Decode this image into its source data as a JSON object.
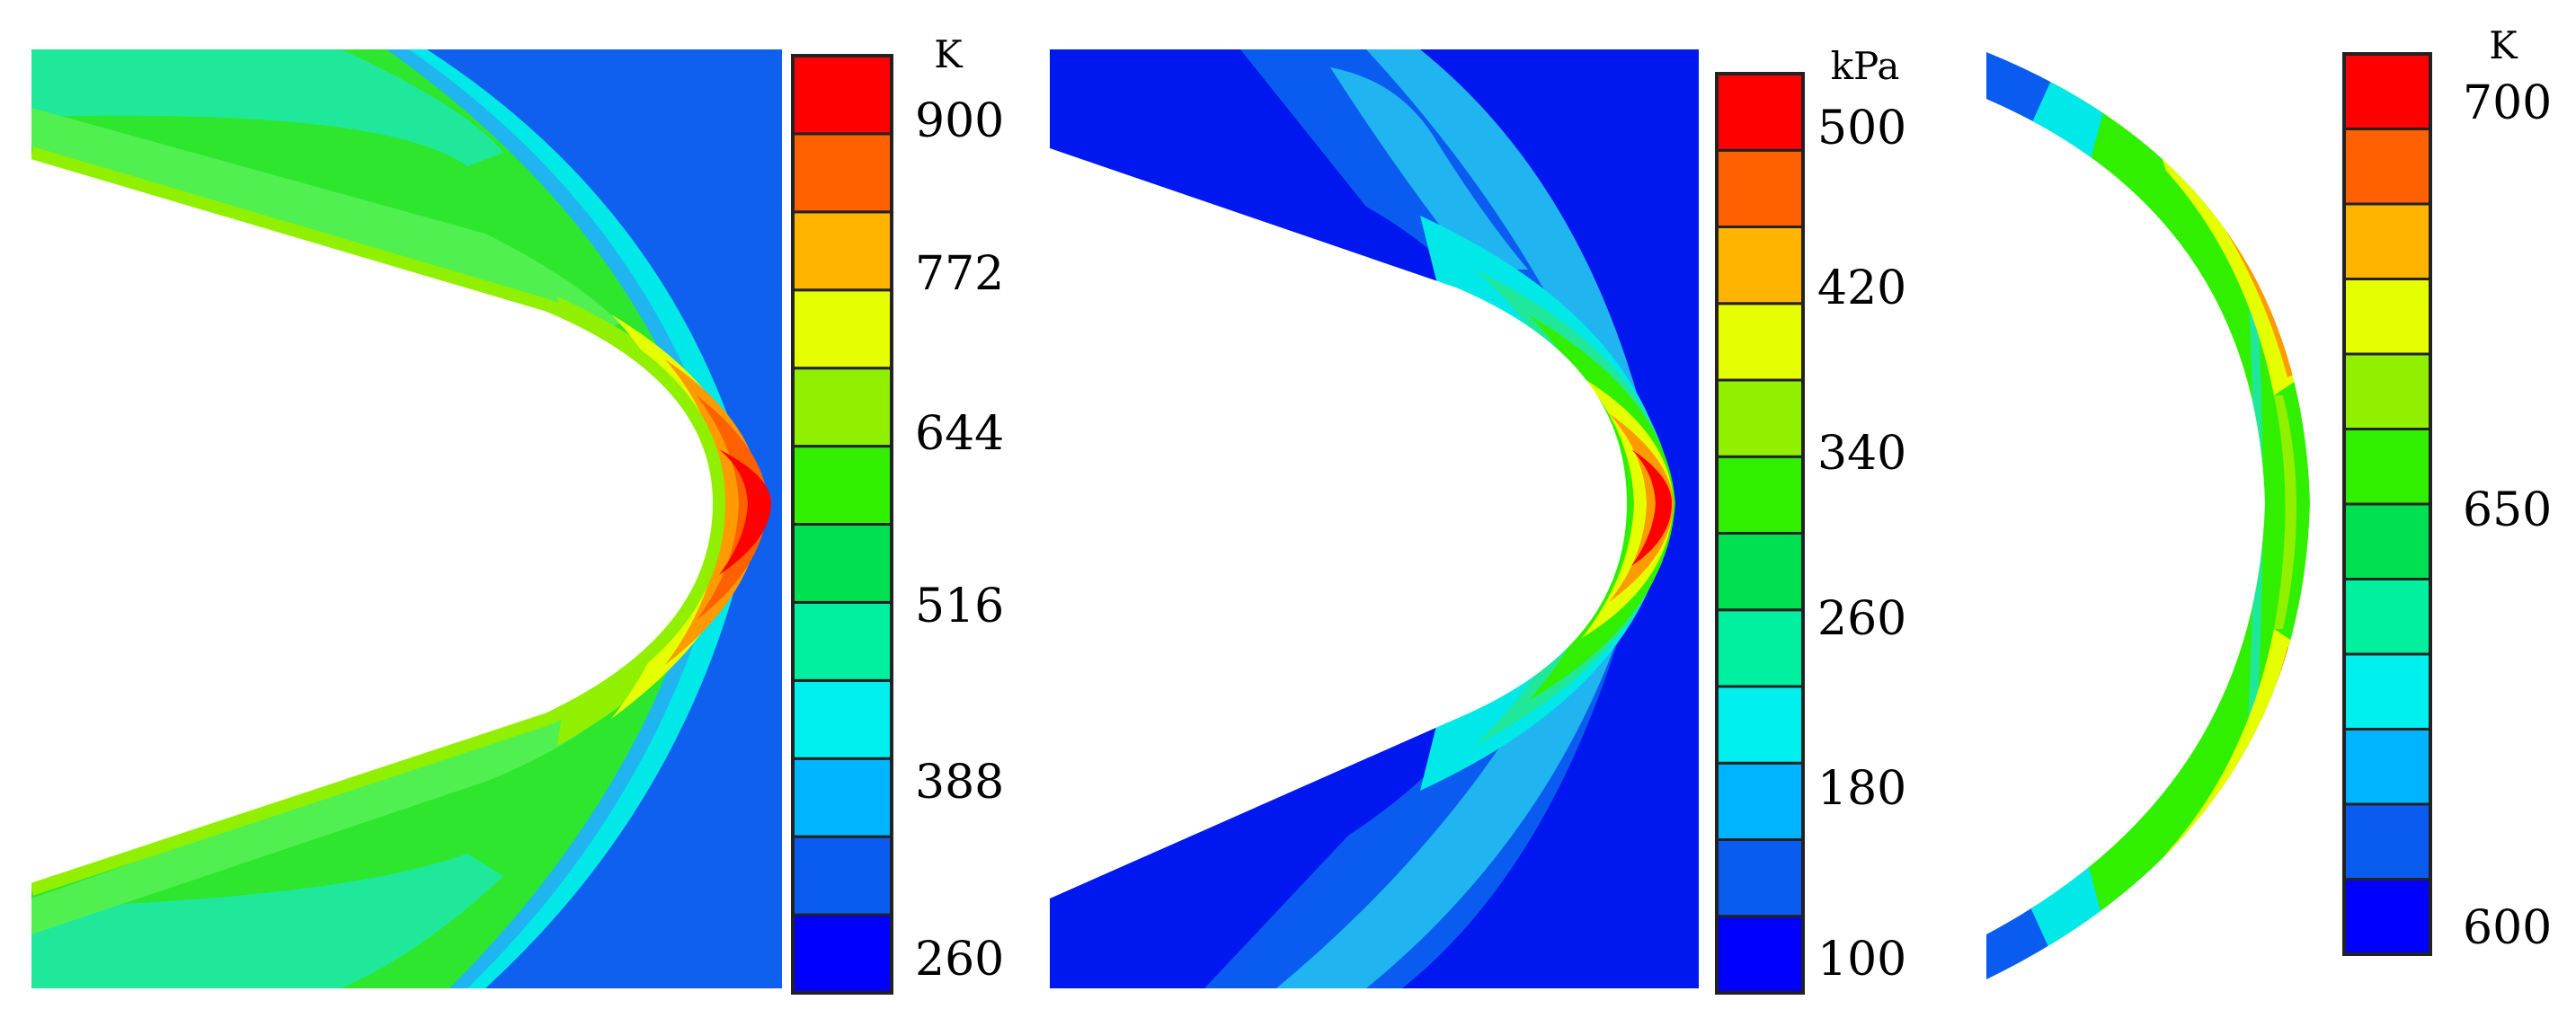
{
  "panels": [
    {
      "id": "temperature",
      "unit": "K",
      "ticks": [
        "900",
        "772",
        "644",
        "516",
        "388",
        "260"
      ]
    },
    {
      "id": "pressure",
      "unit": "kPa",
      "ticks": [
        "500",
        "420",
        "340",
        "260",
        "180",
        "100"
      ]
    },
    {
      "id": "wall-temperature",
      "unit": "K",
      "ticks": [
        "700",
        "650",
        "600"
      ]
    }
  ],
  "colorbar_colors": [
    "#0000ff",
    "#0a5cf0",
    "#00b4ff",
    "#00f0f0",
    "#00f0a0",
    "#00e050",
    "#30f000",
    "#90f000",
    "#e6ff00",
    "#ffb400",
    "#ff6000",
    "#ff0000"
  ],
  "colors": {
    "background_blue": "#1060f0",
    "deep_blue": "#0018f0",
    "green": "#2ee62e",
    "light_green": "#50f050",
    "aqua_green": "#20e89a",
    "cyan": "#00e8e8",
    "light_blue": "#20b4f0",
    "yellow": "#d8ff00",
    "orange": "#ff9a00",
    "red": "#ff0000"
  }
}
